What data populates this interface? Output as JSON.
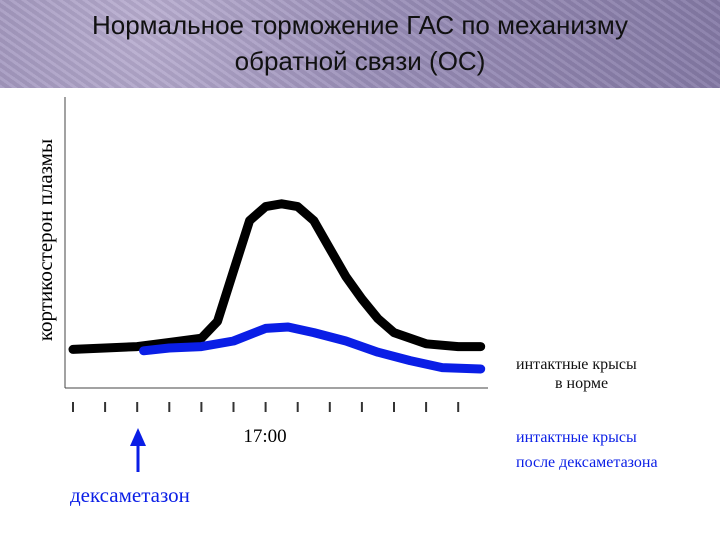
{
  "header": {
    "title_line1": "Нормальное торможение ГАС по механизму",
    "title_line2": "обратной связи (ОС)"
  },
  "chart_data": {
    "type": "line",
    "ylabel": "кортикостерон плазмы",
    "xlabel": "",
    "x_tick_label": "17:00",
    "x_tick_count": 13,
    "marker": {
      "label": "дексаметазон",
      "tick_index": 2
    },
    "series": [
      {
        "name": "интактные крысы в норме",
        "color": "#000000",
        "points": [
          [
            0,
            2
          ],
          [
            1,
            2.5
          ],
          [
            2,
            3
          ],
          [
            3,
            4.5
          ],
          [
            4,
            6
          ],
          [
            4.5,
            12
          ],
          [
            5,
            30
          ],
          [
            5.5,
            48
          ],
          [
            6,
            53
          ],
          [
            6.5,
            54
          ],
          [
            7,
            53
          ],
          [
            7.5,
            48
          ],
          [
            8,
            38
          ],
          [
            8.5,
            28
          ],
          [
            9,
            20
          ],
          [
            9.5,
            13
          ],
          [
            10,
            8
          ],
          [
            11,
            4
          ],
          [
            12,
            3
          ],
          [
            12.7,
            3
          ]
        ]
      },
      {
        "name": "интактные крысы после дексаметазона",
        "color": "#0a1ee6",
        "points": [
          [
            2.2,
            1.5
          ],
          [
            3,
            2.5
          ],
          [
            4,
            3
          ],
          [
            5,
            5
          ],
          [
            6,
            9.5
          ],
          [
            6.7,
            10
          ],
          [
            7.5,
            8
          ],
          [
            8.5,
            5
          ],
          [
            9.5,
            1
          ],
          [
            10.5,
            -2
          ],
          [
            11.5,
            -4.5
          ],
          [
            12.7,
            -5
          ]
        ]
      }
    ]
  }
}
